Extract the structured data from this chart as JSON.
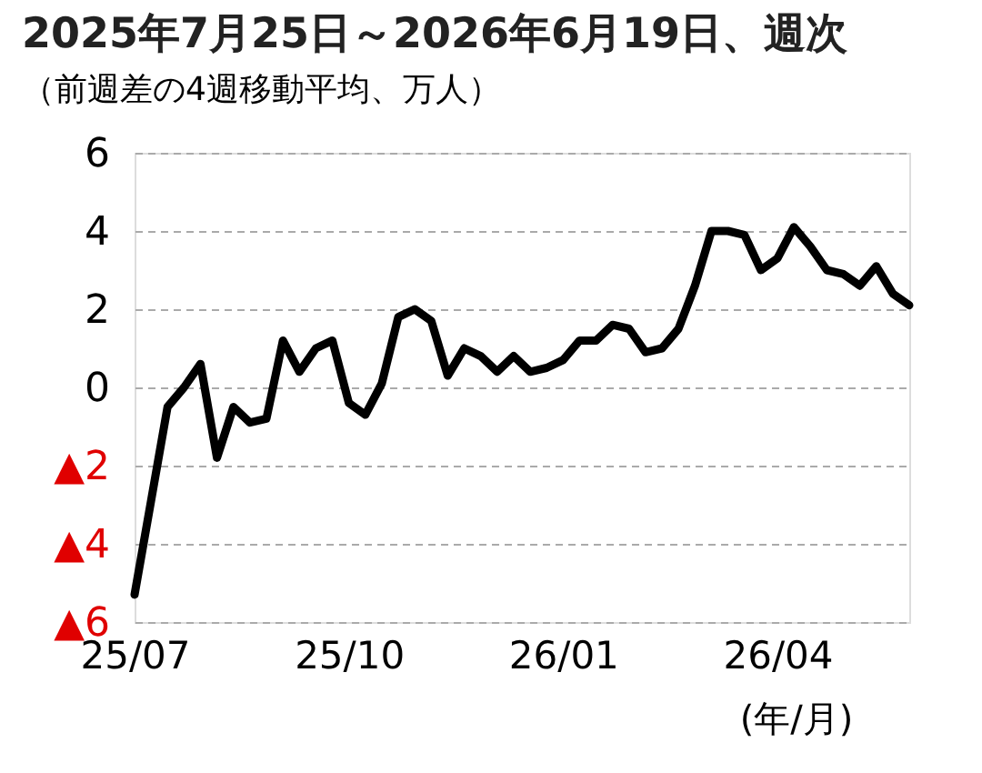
{
  "chart_data": {
    "type": "line",
    "title": "2025年7月25日～2026年6月19日、週次",
    "subtitle": "（前週差の4週移動平均、万人）",
    "annotations": [
      "(年/月)"
    ],
    "x": [
      "2025-07-25",
      "2025-08-01",
      "2025-08-08",
      "2025-08-15",
      "2025-08-22",
      "2025-08-29",
      "2025-09-05",
      "2025-09-12",
      "2025-09-19",
      "2025-09-26",
      "2025-10-03",
      "2025-10-10",
      "2025-10-17",
      "2025-10-24",
      "2025-10-31",
      "2025-11-07",
      "2025-11-14",
      "2025-11-21",
      "2025-11-28",
      "2025-12-05",
      "2025-12-12",
      "2025-12-19",
      "2025-12-26",
      "2026-01-02",
      "2026-01-09",
      "2026-01-16",
      "2026-01-23",
      "2026-01-30",
      "2026-02-06",
      "2026-02-13",
      "2026-02-20",
      "2026-02-27",
      "2026-03-06",
      "2026-03-13",
      "2026-03-20",
      "2026-03-27",
      "2026-04-03",
      "2026-04-10",
      "2026-04-17",
      "2026-04-24",
      "2026-05-01",
      "2026-05-08",
      "2026-05-15",
      "2026-05-22",
      "2026-05-29",
      "2026-06-05",
      "2026-06-12",
      "2026-06-19"
    ],
    "series": [
      {
        "color": "#000000",
        "values": [
          -5.3,
          -2.9,
          -0.5,
          0.0,
          0.6,
          -1.8,
          -0.5,
          -0.9,
          -0.8,
          1.2,
          0.4,
          1.0,
          1.2,
          -0.4,
          -0.7,
          0.1,
          1.8,
          2.0,
          1.7,
          0.3,
          1.0,
          0.8,
          0.4,
          0.8,
          0.4,
          0.5,
          0.7,
          1.2,
          1.2,
          1.6,
          1.5,
          0.9,
          1.0,
          1.5,
          2.6,
          4.0,
          4.0,
          3.9,
          3.0,
          3.3,
          4.1,
          3.6,
          3.0,
          2.9,
          2.6,
          3.1,
          2.4,
          2.1
        ]
      }
    ],
    "xlim": [
      "2025-07-25",
      "2026-06-19"
    ],
    "xticks": [
      {
        "value": "2025-07-25",
        "label": "25/07"
      },
      {
        "value": "2025-10-24",
        "label": "25/10"
      },
      {
        "value": "2026-01-23",
        "label": "26/01"
      },
      {
        "value": "2026-04-24",
        "label": "26/04"
      }
    ],
    "ylim": [
      -6,
      6
    ],
    "yticks": [
      {
        "value": -6,
        "label": "▲6"
      },
      {
        "value": -4,
        "label": "▲4"
      },
      {
        "value": -2,
        "label": "▲2"
      },
      0,
      2,
      4,
      6
    ],
    "grid": "y",
    "marker": "none",
    "line_style": "solid"
  }
}
